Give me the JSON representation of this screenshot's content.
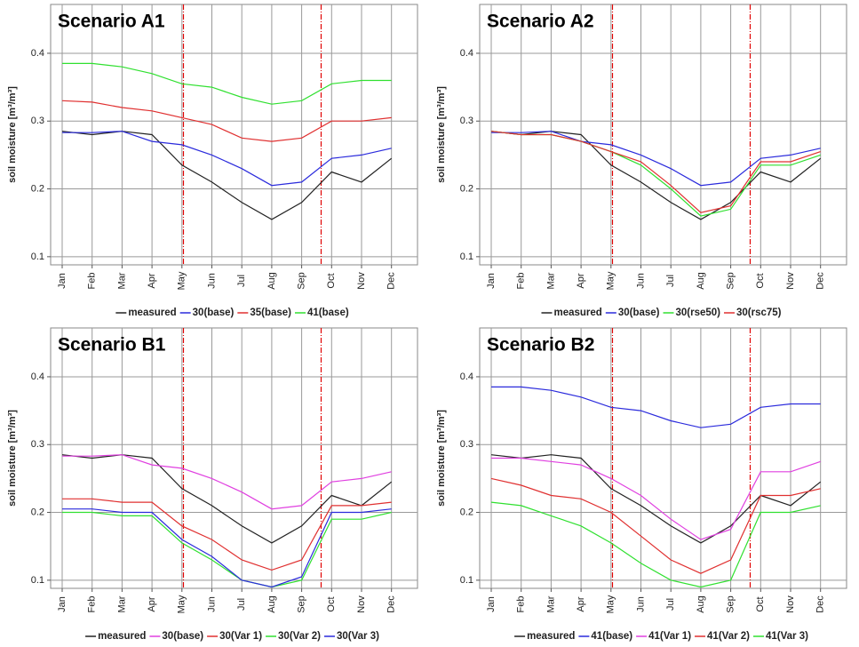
{
  "chart_data": [
    {
      "type": "line",
      "title": "Scenario A1",
      "ylabel": "soil moisture [m³/m³]",
      "categories": [
        "Jan",
        "Feb",
        "Mar",
        "Apr",
        "May",
        "Jun",
        "Jul",
        "Aug",
        "Sep",
        "Oct",
        "Nov",
        "Dec"
      ],
      "series": [
        {
          "name": "measured",
          "color": "#222222",
          "values": [
            0.285,
            0.28,
            0.285,
            0.28,
            0.235,
            0.21,
            0.18,
            0.155,
            0.18,
            0.225,
            0.21,
            0.245
          ]
        },
        {
          "name": "30(base)",
          "color": "#2b2bdc",
          "values": [
            0.283,
            0.283,
            0.285,
            0.27,
            0.265,
            0.25,
            0.23,
            0.205,
            0.21,
            0.245,
            0.25,
            0.26
          ]
        },
        {
          "name": "35(base)",
          "color": "#e03030",
          "values": [
            0.33,
            0.328,
            0.32,
            0.315,
            0.305,
            0.295,
            0.275,
            0.27,
            0.275,
            0.3,
            0.3,
            0.305
          ]
        },
        {
          "name": "41(base)",
          "color": "#30e030",
          "values": [
            0.385,
            0.385,
            0.38,
            0.37,
            0.355,
            0.35,
            0.335,
            0.325,
            0.33,
            0.355,
            0.36,
            0.36
          ]
        }
      ],
      "ylim": [
        0.088,
        0.472
      ],
      "yticks": [
        0.1,
        0.2,
        0.3,
        0.4
      ],
      "grid": true,
      "vlines": [
        4.05,
        8.65
      ],
      "vline_color": "#e00000"
    },
    {
      "type": "line",
      "title": "Scenario A2",
      "ylabel": "soil moisture [m³/m³]",
      "categories": [
        "Jan",
        "Feb",
        "Mar",
        "Apr",
        "May",
        "Jun",
        "Jul",
        "Aug",
        "Sep",
        "Oct",
        "Nov",
        "Dec"
      ],
      "series": [
        {
          "name": "measured",
          "color": "#222222",
          "values": [
            0.285,
            0.28,
            0.285,
            0.28,
            0.235,
            0.21,
            0.18,
            0.155,
            0.18,
            0.225,
            0.21,
            0.245
          ]
        },
        {
          "name": "30(base)",
          "color": "#2b2bdc",
          "values": [
            0.283,
            0.283,
            0.285,
            0.27,
            0.265,
            0.25,
            0.23,
            0.205,
            0.21,
            0.245,
            0.25,
            0.26
          ]
        },
        {
          "name": "30(rse50)",
          "color": "#30e030",
          "values": [
            0.285,
            0.28,
            0.28,
            0.27,
            0.255,
            0.235,
            0.2,
            0.16,
            0.17,
            0.235,
            0.235,
            0.25
          ]
        },
        {
          "name": "30(rsc75)",
          "color": "#e03030",
          "values": [
            0.285,
            0.28,
            0.28,
            0.27,
            0.255,
            0.24,
            0.205,
            0.165,
            0.175,
            0.24,
            0.24,
            0.255
          ]
        }
      ],
      "ylim": [
        0.088,
        0.472
      ],
      "yticks": [
        0.1,
        0.2,
        0.3,
        0.4
      ],
      "grid": true,
      "vlines": [
        4.05,
        8.65
      ],
      "vline_color": "#e00000"
    },
    {
      "type": "line",
      "title": "Scenario B1",
      "ylabel": "soil moisture [m³/m³]",
      "categories": [
        "Jan",
        "Feb",
        "Mar",
        "Apr",
        "May",
        "Jun",
        "Jul",
        "Aug",
        "Sep",
        "Oct",
        "Nov",
        "Dec"
      ],
      "series": [
        {
          "name": "measured",
          "color": "#222222",
          "values": [
            0.285,
            0.28,
            0.285,
            0.28,
            0.235,
            0.21,
            0.18,
            0.155,
            0.18,
            0.225,
            0.21,
            0.245
          ]
        },
        {
          "name": "30(base)",
          "color": "#e040e0",
          "values": [
            0.283,
            0.283,
            0.285,
            0.27,
            0.265,
            0.25,
            0.23,
            0.205,
            0.21,
            0.245,
            0.25,
            0.26
          ]
        },
        {
          "name": "30(Var 1)",
          "color": "#e03030",
          "values": [
            0.22,
            0.22,
            0.215,
            0.215,
            0.18,
            0.16,
            0.13,
            0.115,
            0.13,
            0.21,
            0.21,
            0.215
          ]
        },
        {
          "name": "30(Var 2)",
          "color": "#30e030",
          "values": [
            0.2,
            0.2,
            0.195,
            0.195,
            0.155,
            0.13,
            0.1,
            0.09,
            0.1,
            0.19,
            0.19,
            0.2
          ]
        },
        {
          "name": "30(Var 3)",
          "color": "#2b2bdc",
          "values": [
            0.205,
            0.205,
            0.2,
            0.2,
            0.16,
            0.135,
            0.1,
            0.09,
            0.105,
            0.2,
            0.2,
            0.205
          ]
        }
      ],
      "ylim": [
        0.088,
        0.472
      ],
      "yticks": [
        0.1,
        0.2,
        0.3,
        0.4
      ],
      "grid": true,
      "vlines": [
        4.05,
        8.65
      ],
      "vline_color": "#e00000"
    },
    {
      "type": "line",
      "title": "Scenario B2",
      "ylabel": "soil moisture [m³/m³]",
      "categories": [
        "Jan",
        "Feb",
        "Mar",
        "Apr",
        "May",
        "Jun",
        "Jul",
        "Aug",
        "Sep",
        "Oct",
        "Nov",
        "Dec"
      ],
      "series": [
        {
          "name": "measured",
          "color": "#222222",
          "values": [
            0.285,
            0.28,
            0.285,
            0.28,
            0.235,
            0.21,
            0.18,
            0.155,
            0.18,
            0.225,
            0.21,
            0.245
          ]
        },
        {
          "name": "41(base)",
          "color": "#2b2bdc",
          "values": [
            0.385,
            0.385,
            0.38,
            0.37,
            0.355,
            0.35,
            0.335,
            0.325,
            0.33,
            0.355,
            0.36,
            0.36
          ]
        },
        {
          "name": "41(Var 1)",
          "color": "#e040e0",
          "values": [
            0.28,
            0.28,
            0.275,
            0.27,
            0.25,
            0.225,
            0.19,
            0.16,
            0.175,
            0.26,
            0.26,
            0.275
          ]
        },
        {
          "name": "41(Var 2)",
          "color": "#e03030",
          "values": [
            0.25,
            0.24,
            0.225,
            0.22,
            0.2,
            0.165,
            0.13,
            0.11,
            0.13,
            0.225,
            0.225,
            0.235
          ]
        },
        {
          "name": "41(Var 3)",
          "color": "#30e030",
          "values": [
            0.215,
            0.21,
            0.195,
            0.18,
            0.155,
            0.125,
            0.1,
            0.09,
            0.1,
            0.2,
            0.2,
            0.21
          ]
        }
      ],
      "ylim": [
        0.088,
        0.472
      ],
      "yticks": [
        0.1,
        0.2,
        0.3,
        0.4
      ],
      "grid": true,
      "vlines": [
        4.05,
        8.65
      ],
      "vline_color": "#e00000"
    }
  ]
}
